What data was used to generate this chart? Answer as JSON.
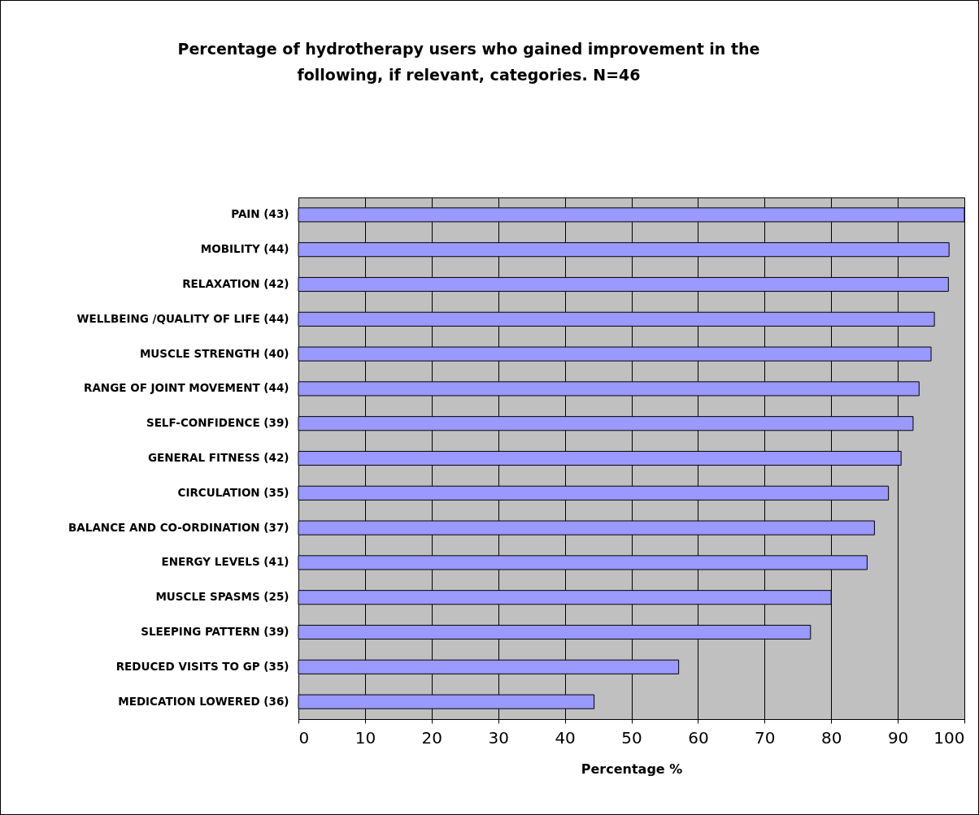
{
  "chart_data": {
    "type": "bar",
    "orientation": "horizontal",
    "title": "Percentage of hydrotherapy users who gained improvement in the following, if relevant, categories. N=46",
    "xlabel": "Percentage %",
    "categories": [
      "PAIN (43)",
      "MOBILITY (44)",
      "RELAXATION (42)",
      "WELLBEING /QUALITY OF LIFE (44)",
      "MUSCLE STRENGTH (40)",
      "RANGE OF JOINT MOVEMENT (44)",
      "SELF-CONFIDENCE (39)",
      "GENERAL FITNESS (42)",
      "CIRCULATION (35)",
      "BALANCE AND CO-ORDINATION (37)",
      "ENERGY LEVELS (41)",
      "MUSCLE SPASMS (25)",
      "SLEEPING PATTERN (39)",
      "REDUCED VISITS TO GP (35)",
      "MEDICATION LOWERED (36)"
    ],
    "values": [
      100,
      97.7,
      97.6,
      95.5,
      95,
      93.2,
      92.3,
      90.5,
      88.6,
      86.5,
      85.4,
      80,
      76.9,
      57.1,
      44.4
    ],
    "color": "#9999ff",
    "xlim": [
      0,
      100
    ],
    "xticks": [
      0,
      10,
      20,
      30,
      40,
      50,
      60,
      70,
      80,
      90,
      100
    ],
    "grid": "x"
  }
}
